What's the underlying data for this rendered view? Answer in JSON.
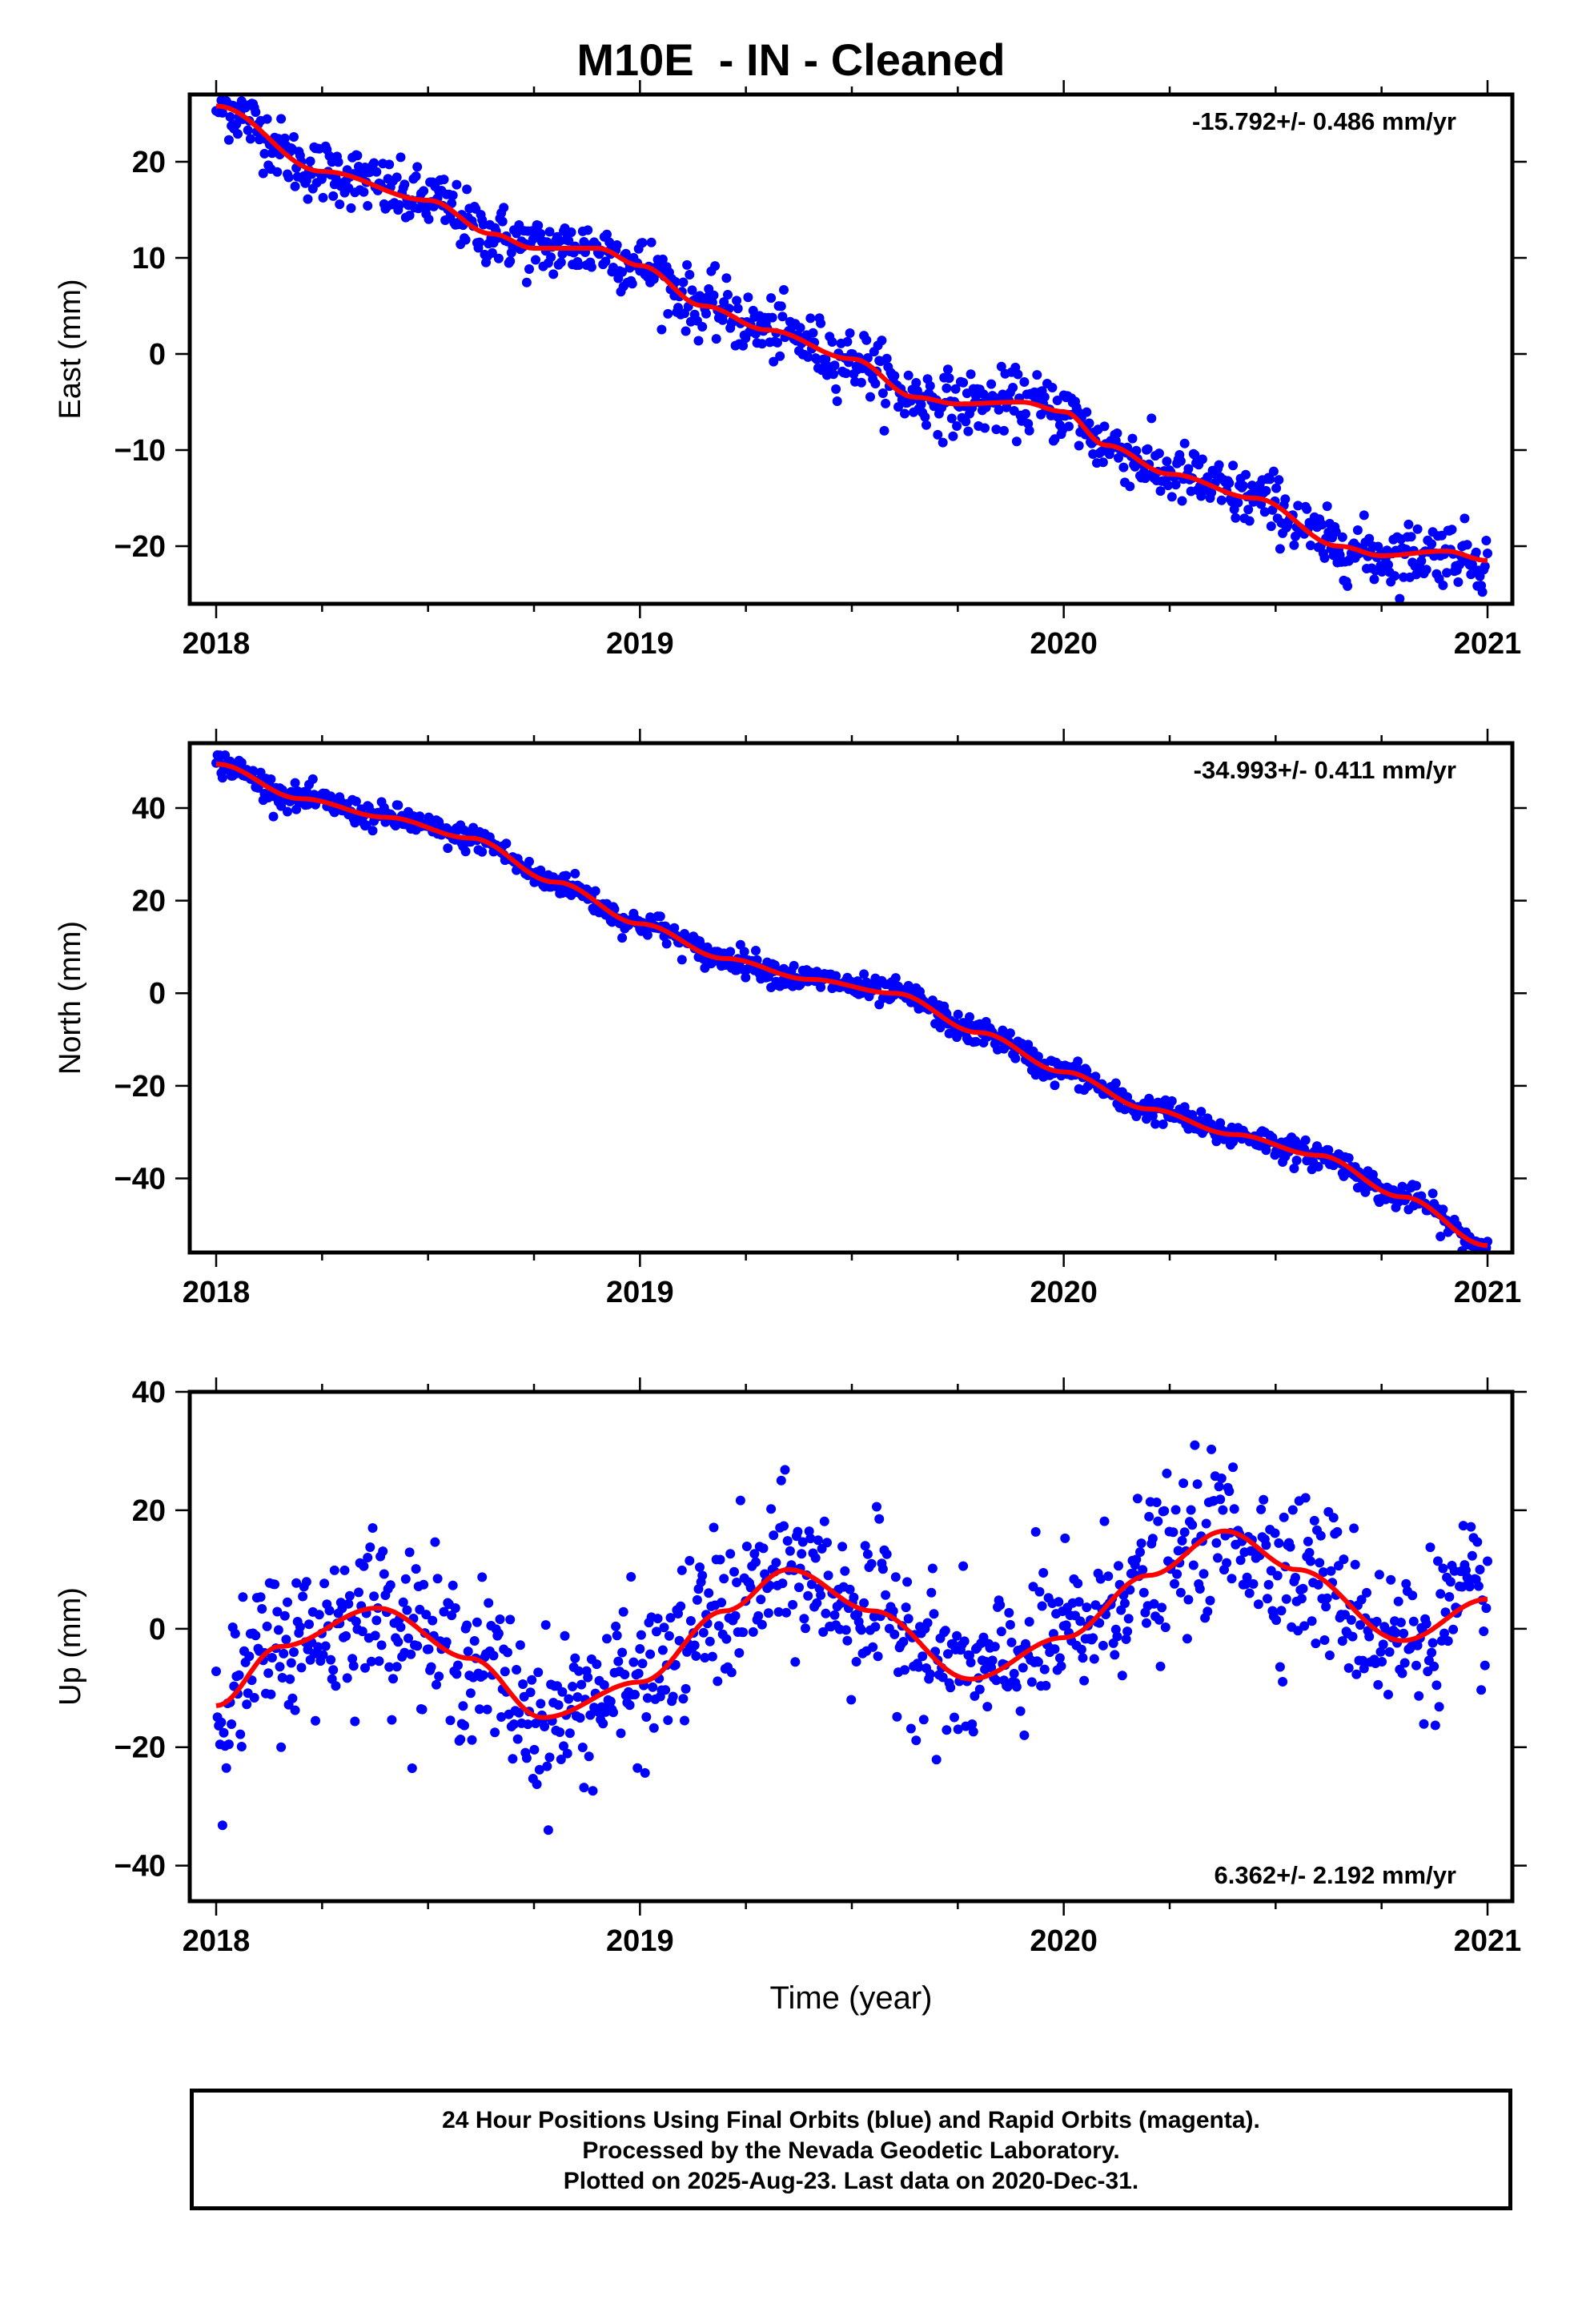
{
  "title": "M10E  - IN - Cleaned",
  "footer": {
    "line1": "24 Hour Positions Using Final Orbits (blue) and Rapid Orbits (magenta).",
    "line2": "Processed by the Nevada Geodetic Laboratory.",
    "line3": "Plotted on 2025-Aug-23. Last data on 2020-Dec-31."
  },
  "colors": {
    "points": "#0000ff",
    "fit": "#ff0000",
    "axes": "#000000"
  },
  "chart_data": [
    {
      "type": "scatter",
      "ylabel": "East (mm)",
      "xlabel": "",
      "xlim": [
        2018,
        2021
      ],
      "ylim": [
        -26,
        27
      ],
      "yticks": [
        -20,
        -10,
        0,
        10,
        20
      ],
      "ytick_labels": [
        "−20",
        "−10",
        "0",
        "10",
        "20"
      ],
      "xtick_labels": [
        "2018",
        "2019",
        "2020",
        "2021"
      ],
      "rate_label": "-15.792+/- 0.486 mm/yr",
      "rate_position": "top-right",
      "fit_line": {
        "x": [
          2018.0,
          2018.25,
          2018.5,
          2018.65,
          2018.75,
          2018.9,
          2019.0,
          2019.15,
          2019.3,
          2019.5,
          2019.65,
          2019.75,
          2019.9,
          2020.0,
          2020.1,
          2020.25,
          2020.45,
          2020.65,
          2020.75,
          2020.9,
          2021.0
        ],
        "y": [
          25.8,
          19.0,
          16.0,
          12.5,
          11.0,
          11.0,
          9.2,
          5.0,
          2.5,
          -0.5,
          -4.5,
          -5.2,
          -5.0,
          -6.0,
          -9.5,
          -12.5,
          -15.0,
          -20.0,
          -21.0,
          -20.5,
          -21.5
        ]
      },
      "scatter_spread": 1.6
    },
    {
      "type": "scatter",
      "ylabel": "North (mm)",
      "xlabel": "",
      "xlim": [
        2018,
        2021
      ],
      "ylim": [
        -56,
        54
      ],
      "yticks": [
        -40,
        -20,
        0,
        20,
        40
      ],
      "ytick_labels": [
        "−40",
        "−20",
        "0",
        "20",
        "40"
      ],
      "xtick_labels": [
        "2018",
        "2019",
        "2020",
        "2021"
      ],
      "rate_label": "-34.993+/- 0.411 mm/yr",
      "rate_position": "top-right",
      "fit_line": {
        "x": [
          2018.0,
          2018.2,
          2018.4,
          2018.6,
          2018.8,
          2019.0,
          2019.2,
          2019.4,
          2019.6,
          2019.8,
          2020.0,
          2020.2,
          2020.4,
          2020.6,
          2020.8,
          2021.0
        ],
        "y": [
          49.5,
          42.0,
          38.0,
          33.5,
          24.0,
          15.0,
          7.5,
          3.0,
          0.0,
          -8.5,
          -17.0,
          -25.0,
          -30.5,
          -35.0,
          -44.0,
          -54.5
        ]
      },
      "scatter_spread": 1.4
    },
    {
      "type": "scatter",
      "ylabel": "Up (mm)",
      "xlabel": "Time (year)",
      "xlim": [
        2018,
        2021
      ],
      "ylim": [
        -46,
        40
      ],
      "yticks": [
        -40,
        -20,
        0,
        20,
        40
      ],
      "ytick_labels": [
        "−40",
        "−20",
        "0",
        "20",
        "40"
      ],
      "xtick_labels": [
        "2018",
        "2019",
        "2020",
        "2021"
      ],
      "rate_label": "6.362+/- 2.192 mm/yr",
      "rate_position": "bottom-right",
      "fit_line": {
        "x": [
          2018.0,
          2018.15,
          2018.38,
          2018.6,
          2018.77,
          2019.0,
          2019.2,
          2019.35,
          2019.55,
          2019.78,
          2020.0,
          2020.2,
          2020.38,
          2020.55,
          2020.8,
          2021.0
        ],
        "y": [
          -13.0,
          -3.0,
          3.5,
          -5.0,
          -15.0,
          -9.0,
          3.0,
          10.0,
          3.0,
          -8.5,
          -1.5,
          9.0,
          16.5,
          10.0,
          -2.0,
          5.0
        ]
      },
      "scatter_spread": 6.5
    }
  ]
}
